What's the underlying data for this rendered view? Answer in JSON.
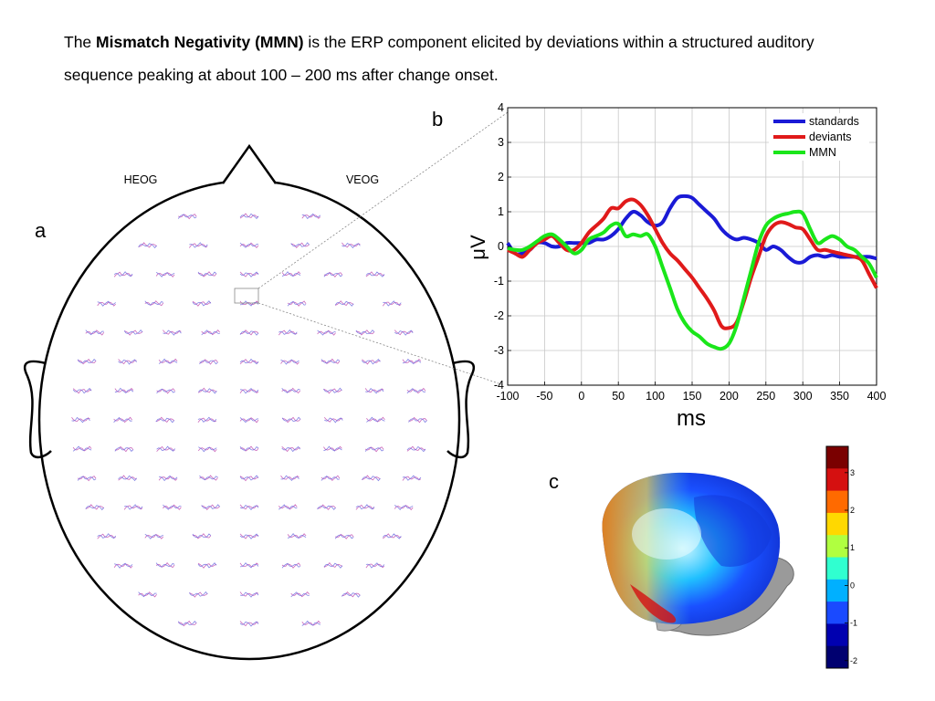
{
  "slide": {
    "title_prefix": "The ",
    "title_bold": "Mismatch Negativity (MMN)",
    "title_rest": " is the ERP component elicited by deviations within a structured auditory sequence peaking at  about 100 – 200 ms after change onset."
  },
  "panels": {
    "a": "a",
    "b": "b",
    "c": "c"
  },
  "head": {
    "left_label": "HEOG",
    "right_label": "VEOG"
  },
  "chart_data": {
    "type": "line",
    "xlabel": "ms",
    "ylabel": "μV",
    "xlim": [
      -100,
      400
    ],
    "ylim": [
      -4,
      4
    ],
    "xticks": [
      "-100",
      "-50",
      "0",
      "50",
      "100",
      "150",
      "200",
      "250",
      "300",
      "350",
      "400"
    ],
    "yticks": [
      "4",
      "3",
      "2",
      "1",
      "0",
      "-1",
      "-2",
      "-3",
      "-4"
    ],
    "grid": true,
    "legend": "top-right",
    "series": [
      {
        "name": "standards",
        "color": "#1a1ad6",
        "x": [
          -100,
          -90,
          -80,
          -70,
          -60,
          -50,
          -40,
          -30,
          -20,
          -10,
          0,
          10,
          20,
          30,
          40,
          50,
          60,
          70,
          80,
          90,
          100,
          110,
          120,
          130,
          140,
          150,
          160,
          170,
          180,
          190,
          200,
          210,
          220,
          230,
          240,
          250,
          260,
          270,
          280,
          290,
          300,
          310,
          320,
          330,
          340,
          350,
          360,
          370,
          380,
          390,
          400
        ],
        "y": [
          0.1,
          -0.2,
          -0.2,
          -0.1,
          0.1,
          0.1,
          0.0,
          0.0,
          0.1,
          0.1,
          0.1,
          0.1,
          0.2,
          0.2,
          0.3,
          0.5,
          0.8,
          1.0,
          0.9,
          0.7,
          0.6,
          0.7,
          1.1,
          1.4,
          1.45,
          1.4,
          1.2,
          1.0,
          0.8,
          0.5,
          0.3,
          0.2,
          0.25,
          0.2,
          0.1,
          -0.1,
          0.0,
          -0.1,
          -0.3,
          -0.45,
          -0.45,
          -0.3,
          -0.25,
          -0.3,
          -0.25,
          -0.3,
          -0.3,
          -0.3,
          -0.3,
          -0.3,
          -0.35
        ]
      },
      {
        "name": "deviants",
        "color": "#e01a1a",
        "x": [
          -100,
          -90,
          -80,
          -70,
          -60,
          -50,
          -40,
          -30,
          -20,
          -10,
          0,
          10,
          20,
          30,
          40,
          50,
          60,
          70,
          80,
          90,
          100,
          110,
          120,
          130,
          140,
          150,
          160,
          170,
          180,
          190,
          200,
          210,
          220,
          230,
          240,
          250,
          260,
          270,
          280,
          290,
          300,
          310,
          320,
          330,
          340,
          350,
          360,
          370,
          380,
          390,
          400
        ],
        "y": [
          -0.1,
          -0.2,
          -0.3,
          -0.1,
          0.1,
          0.2,
          0.3,
          0.1,
          -0.1,
          -0.1,
          0.1,
          0.4,
          0.6,
          0.8,
          1.1,
          1.1,
          1.3,
          1.35,
          1.2,
          0.9,
          0.5,
          0.1,
          -0.2,
          -0.4,
          -0.65,
          -0.9,
          -1.2,
          -1.5,
          -1.85,
          -2.3,
          -2.35,
          -2.2,
          -1.6,
          -0.9,
          -0.3,
          0.3,
          0.6,
          0.7,
          0.65,
          0.55,
          0.5,
          0.2,
          -0.1,
          -0.1,
          -0.15,
          -0.2,
          -0.25,
          -0.3,
          -0.4,
          -0.8,
          -1.2
        ]
      },
      {
        "name": "MMN",
        "color": "#1ae61a",
        "x": [
          -100,
          -90,
          -80,
          -70,
          -60,
          -50,
          -40,
          -30,
          -20,
          -10,
          0,
          10,
          20,
          30,
          40,
          50,
          60,
          70,
          80,
          90,
          100,
          110,
          120,
          130,
          140,
          150,
          160,
          170,
          180,
          190,
          200,
          210,
          220,
          230,
          240,
          250,
          260,
          270,
          280,
          290,
          300,
          310,
          320,
          330,
          340,
          350,
          360,
          370,
          380,
          390,
          400
        ],
        "y": [
          -0.05,
          -0.1,
          -0.1,
          0.0,
          0.15,
          0.3,
          0.35,
          0.2,
          0.0,
          -0.2,
          -0.1,
          0.2,
          0.3,
          0.4,
          0.6,
          0.65,
          0.3,
          0.35,
          0.3,
          0.35,
          0.0,
          -0.6,
          -1.2,
          -1.8,
          -2.2,
          -2.45,
          -2.6,
          -2.8,
          -2.9,
          -2.95,
          -2.8,
          -2.3,
          -1.5,
          -0.7,
          0.1,
          0.6,
          0.8,
          0.9,
          0.95,
          1.0,
          0.95,
          0.5,
          0.1,
          0.2,
          0.3,
          0.2,
          0.0,
          -0.1,
          -0.3,
          -0.5,
          -0.9
        ]
      }
    ]
  },
  "colorbar": {
    "ticks": [
      "3",
      "2",
      "1",
      "0",
      "-1",
      "-2"
    ],
    "range": [
      -2.2,
      3.7
    ],
    "colors": [
      "#7a0000",
      "#d51010",
      "#ff6a00",
      "#ffd800",
      "#b0ff40",
      "#30ffd0",
      "#00b0ff",
      "#1a4aff",
      "#0000b0",
      "#000070"
    ]
  }
}
